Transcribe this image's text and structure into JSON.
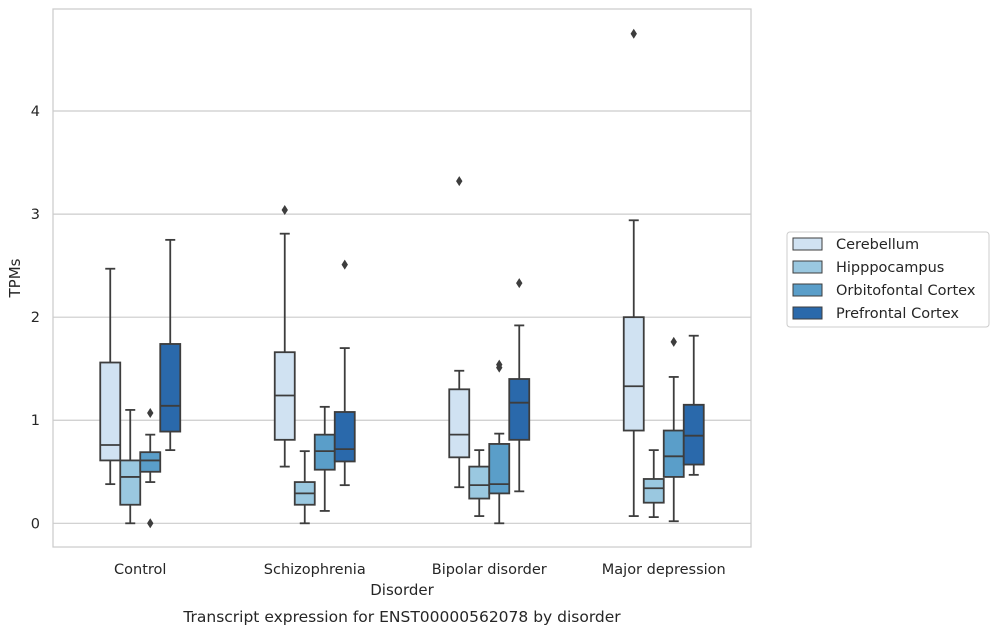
{
  "chart_data": {
    "type": "box",
    "caption": "Transcript expression for ENST00000562078 by disorder",
    "xlabel": "Disorder",
    "ylabel": "TPMs",
    "ylim": [
      -0.23,
      4.99
    ],
    "yticks": [
      0,
      1,
      2,
      3,
      4
    ],
    "grid": "horizontal",
    "legend_position": "right",
    "categories": [
      "Control",
      "Schizophrenia",
      "Bipolar disorder",
      "Major depression"
    ],
    "series": [
      {
        "name": "Cerebellum",
        "color": "#d0e2f2",
        "boxes": [
          {
            "whislo": 0.38,
            "q1": 0.61,
            "med": 0.76,
            "q3": 1.56,
            "whishi": 2.47,
            "fliers": []
          },
          {
            "whislo": 0.55,
            "q1": 0.81,
            "med": 1.24,
            "q3": 1.66,
            "whishi": 2.81,
            "fliers": [
              3.04
            ]
          },
          {
            "whislo": 0.35,
            "q1": 0.64,
            "med": 0.86,
            "q3": 1.3,
            "whishi": 1.48,
            "fliers": [
              3.32
            ]
          },
          {
            "whislo": 0.07,
            "q1": 0.9,
            "med": 1.33,
            "q3": 2.0,
            "whishi": 2.94,
            "fliers": [
              4.75
            ]
          }
        ]
      },
      {
        "name": "Hipppocampus",
        "color": "#9ac8e0",
        "boxes": [
          {
            "whislo": 0.0,
            "q1": 0.18,
            "med": 0.45,
            "q3": 0.61,
            "whishi": 1.1,
            "fliers": []
          },
          {
            "whislo": 0.0,
            "q1": 0.18,
            "med": 0.29,
            "q3": 0.4,
            "whishi": 0.7,
            "fliers": []
          },
          {
            "whislo": 0.07,
            "q1": 0.24,
            "med": 0.37,
            "q3": 0.55,
            "whishi": 0.71,
            "fliers": []
          },
          {
            "whislo": 0.06,
            "q1": 0.2,
            "med": 0.34,
            "q3": 0.43,
            "whishi": 0.71,
            "fliers": []
          }
        ]
      },
      {
        "name": "Orbitofontal Cortex",
        "color": "#5a9ec9",
        "boxes": [
          {
            "whislo": 0.4,
            "q1": 0.5,
            "med": 0.61,
            "q3": 0.69,
            "whishi": 0.86,
            "fliers": [
              0.0,
              1.07
            ]
          },
          {
            "whislo": 0.12,
            "q1": 0.52,
            "med": 0.7,
            "q3": 0.86,
            "whishi": 1.13,
            "fliers": []
          },
          {
            "whislo": 0.0,
            "q1": 0.29,
            "med": 0.38,
            "q3": 0.77,
            "whishi": 0.87,
            "fliers": [
              1.51,
              1.54
            ]
          },
          {
            "whislo": 0.02,
            "q1": 0.45,
            "med": 0.65,
            "q3": 0.9,
            "whishi": 1.42,
            "fliers": [
              1.76
            ]
          }
        ]
      },
      {
        "name": "Prefrontal Cortex",
        "color": "#2a69ab",
        "boxes": [
          {
            "whislo": 0.71,
            "q1": 0.89,
            "med": 1.14,
            "q3": 1.74,
            "whishi": 2.75,
            "fliers": []
          },
          {
            "whislo": 0.37,
            "q1": 0.6,
            "med": 0.72,
            "q3": 1.08,
            "whishi": 1.7,
            "fliers": [
              2.51
            ]
          },
          {
            "whislo": 0.31,
            "q1": 0.81,
            "med": 1.17,
            "q3": 1.4,
            "whishi": 1.92,
            "fliers": [
              2.33
            ]
          },
          {
            "whislo": 0.47,
            "q1": 0.57,
            "med": 0.85,
            "q3": 1.15,
            "whishi": 1.82,
            "fliers": []
          }
        ]
      }
    ]
  }
}
